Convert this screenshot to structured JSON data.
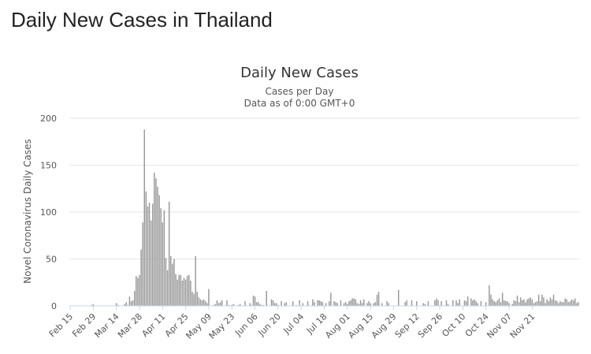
{
  "page": {
    "title": "Daily New Cases in Thailand"
  },
  "chart_data": {
    "type": "bar",
    "title": "Daily New Cases",
    "subtitle_lines": [
      "Cases per Day",
      "Data as of 0:00 GMT+0"
    ],
    "ylabel": "Novel Coronavirus Daily Cases",
    "xlabel": "",
    "ylim": [
      0,
      200
    ],
    "yticks": [
      0,
      50,
      100,
      150,
      200
    ],
    "grid": true,
    "legend": "none",
    "bar_color": "#999999",
    "start_date": "2020-02-15",
    "xtick_labels": [
      "Feb 15",
      "Feb 29",
      "Mar 14",
      "Mar 28",
      "Apr 11",
      "Apr 25",
      "May 09",
      "May 23",
      "Jun 06",
      "Jun 20",
      "Jul 04",
      "Jul 18",
      "Aug 01",
      "Aug 15",
      "Aug 29",
      "Sep 12",
      "Sep 26",
      "Oct 10",
      "Oct 24",
      "Nov 07",
      "Nov 21"
    ],
    "values": [
      0,
      0,
      0,
      0,
      0,
      0,
      0,
      0,
      0,
      0,
      0,
      0,
      0,
      1,
      2,
      0,
      0,
      0,
      0,
      0,
      0,
      0,
      0,
      0,
      0,
      0,
      0,
      0,
      3,
      1,
      0,
      0,
      0,
      2,
      4,
      1,
      10,
      5,
      6,
      16,
      32,
      30,
      33,
      60,
      89,
      188,
      122,
      106,
      110,
      91,
      109,
      142,
      136,
      127,
      118,
      104,
      89,
      102,
      51,
      38,
      111,
      53,
      45,
      50,
      34,
      28,
      33,
      33,
      27,
      30,
      28,
      32,
      33,
      27,
      15,
      13,
      53,
      15,
      9,
      7,
      6,
      7,
      5,
      3,
      18,
      0,
      0,
      1,
      2,
      6,
      3,
      4,
      6,
      0,
      0,
      6,
      1,
      0,
      1,
      2,
      0,
      0,
      1,
      2,
      0,
      0,
      5,
      0,
      0,
      3,
      1,
      11,
      10,
      4,
      4,
      2,
      1,
      1,
      0,
      16,
      0,
      0,
      7,
      6,
      3,
      3,
      1,
      0,
      5,
      0,
      3,
      4,
      0,
      0,
      0,
      5,
      0,
      1,
      0,
      6,
      0,
      3,
      0,
      0,
      5,
      0,
      0,
      7,
      4,
      0,
      6,
      6,
      5,
      4,
      0,
      3,
      0,
      5,
      14,
      0,
      5,
      4,
      3,
      0,
      6,
      0,
      3,
      4,
      2,
      5,
      6,
      8,
      8,
      7,
      3,
      2,
      6,
      3,
      7,
      0,
      3,
      5,
      3,
      0,
      3,
      4,
      12,
      15,
      0,
      3,
      0,
      0,
      5,
      3,
      0,
      0,
      0,
      0,
      0,
      17,
      0,
      0,
      0,
      4,
      6,
      0,
      0,
      6,
      0,
      0,
      5,
      0,
      0,
      0,
      3,
      2,
      0,
      5,
      0,
      0,
      0,
      6,
      8,
      6,
      0,
      5,
      0,
      0,
      6,
      2,
      0,
      0,
      6,
      0,
      6,
      3,
      7,
      0,
      0,
      6,
      5,
      10,
      0,
      8,
      6,
      7,
      5,
      3,
      0,
      5,
      0,
      0,
      4,
      0,
      22,
      12,
      7,
      5,
      4,
      6,
      8,
      4,
      14,
      6,
      5,
      5,
      3,
      0,
      2,
      6,
      5,
      11,
      4,
      9,
      6,
      7,
      4,
      7,
      8,
      9,
      7,
      3,
      4,
      5,
      12,
      5,
      12,
      9,
      3,
      7,
      5,
      9,
      7,
      12,
      6,
      5,
      3,
      5,
      4,
      4,
      8,
      7,
      4,
      5,
      7,
      6,
      8,
      3,
      4
    ]
  }
}
